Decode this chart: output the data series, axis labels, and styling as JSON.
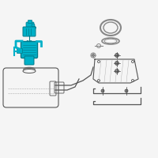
{
  "bg_color": "#f5f5f5",
  "teal": "#00b0c8",
  "dark_teal": "#007a8a",
  "gray": "#888888",
  "dark_gray": "#444444",
  "light_gray": "#aaaaaa",
  "line_color": "#555555",
  "figsize": [
    2.0,
    2.0
  ],
  "dpi": 100
}
